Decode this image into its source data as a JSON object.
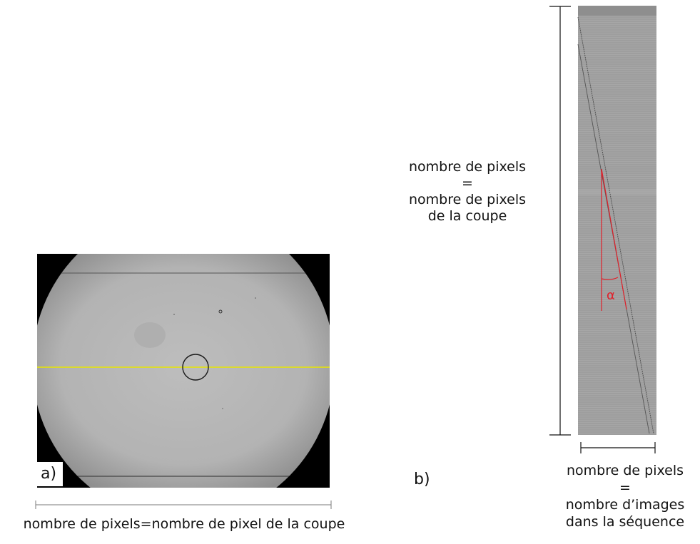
{
  "panel_a": {
    "label": "a)",
    "caption": "nombre de pixels=nombre de pixel de la coupe",
    "colors": {
      "scan_line": "#e8e600",
      "frame": "#000000",
      "field": "#b4b4b4"
    }
  },
  "panel_b": {
    "label": "b)",
    "vertical_caption": {
      "line1": "nombre de pixels",
      "line2": "=",
      "line3": "nombre de pixels",
      "line4": "de la coupe"
    },
    "horizontal_caption": {
      "line1": "nombre de pixels",
      "line2": "=",
      "line3": "nombre d’images",
      "line4": "dans la séquence"
    },
    "angle_symbol": "α",
    "colors": {
      "angle": "#e0202a",
      "strip": "#9c9c9c"
    }
  }
}
